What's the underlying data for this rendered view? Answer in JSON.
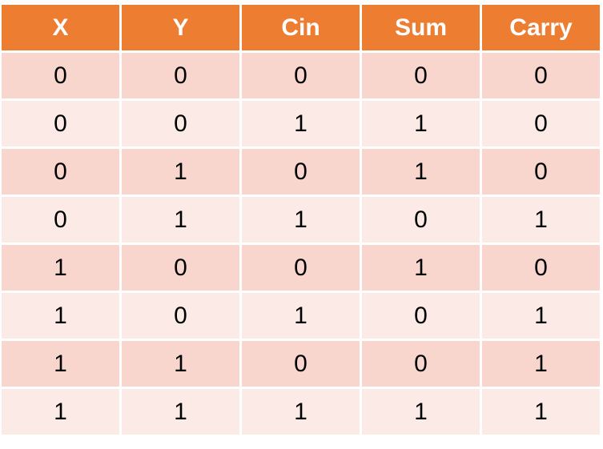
{
  "table": {
    "columns": [
      "X",
      "Y",
      "Cin",
      "Sum",
      "Carry"
    ],
    "rows": [
      [
        0,
        0,
        0,
        0,
        0
      ],
      [
        0,
        0,
        1,
        1,
        0
      ],
      [
        0,
        1,
        0,
        1,
        0
      ],
      [
        0,
        1,
        1,
        0,
        1
      ],
      [
        1,
        0,
        0,
        1,
        0
      ],
      [
        1,
        0,
        1,
        0,
        1
      ],
      [
        1,
        1,
        0,
        0,
        1
      ],
      [
        1,
        1,
        1,
        1,
        1
      ]
    ]
  }
}
